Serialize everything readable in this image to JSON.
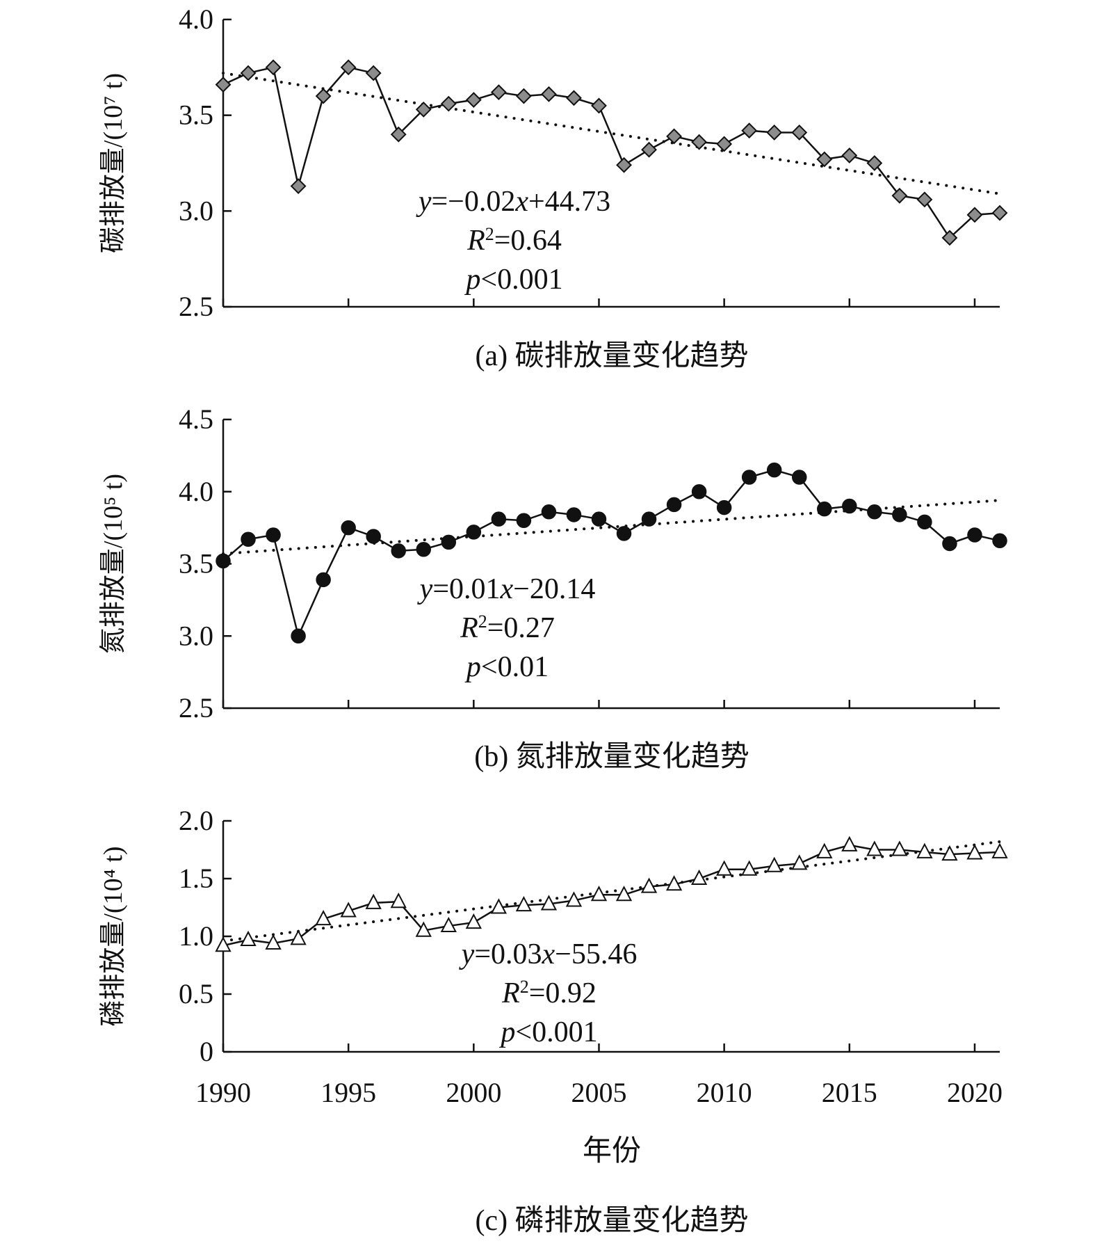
{
  "chart_data": [
    {
      "type": "line",
      "panel": "a",
      "caption": "(a) 碳排放量变化趋势",
      "ylabel": "碳排放量/(10⁷ t)",
      "ylim": [
        2.5,
        4.0
      ],
      "yticks": [
        "4.0",
        "3.5",
        "3.0",
        "2.5"
      ],
      "ytick_values": [
        4.0,
        3.5,
        3.0,
        2.5
      ],
      "marker": "diamond",
      "marker_color": "#8c8c8c",
      "x": [
        1990,
        1991,
        1992,
        1993,
        1994,
        1995,
        1996,
        1997,
        1998,
        1999,
        2000,
        2001,
        2002,
        2003,
        2004,
        2005,
        2006,
        2007,
        2008,
        2009,
        2010,
        2011,
        2012,
        2013,
        2014,
        2015,
        2016,
        2017,
        2018,
        2019,
        2020,
        2021
      ],
      "values": [
        3.66,
        3.72,
        3.75,
        3.13,
        3.6,
        3.75,
        3.72,
        3.4,
        3.53,
        3.56,
        3.58,
        3.62,
        3.6,
        3.61,
        3.59,
        3.55,
        3.24,
        3.32,
        3.39,
        3.36,
        3.35,
        3.42,
        3.41,
        3.41,
        3.27,
        3.29,
        3.25,
        3.08,
        3.06,
        2.86,
        2.98,
        2.99
      ],
      "trend": {
        "slope": -0.02,
        "intercept": 44.73
      },
      "trend_plot": {
        "start": 3.72,
        "end": 3.09
      },
      "equation": {
        "y_var": "y",
        "eq_sign": "=",
        "body": "−0.02",
        "x_var": "x",
        "tail": "+44.73"
      },
      "r2": {
        "var": "R",
        "sup": "2",
        "text": "=0.64"
      },
      "p": {
        "var": "p",
        "text": "<0.001"
      }
    },
    {
      "type": "line",
      "panel": "b",
      "caption": "(b) 氮排放量变化趋势",
      "ylabel": "氮排放量/(10⁵ t)",
      "ylim": [
        2.5,
        4.5
      ],
      "yticks": [
        "4.5",
        "4.0",
        "3.5",
        "3.0",
        "2.5"
      ],
      "ytick_values": [
        4.5,
        4.0,
        3.5,
        3.0,
        2.5
      ],
      "marker": "circle",
      "marker_color": "#111111",
      "x": [
        1990,
        1991,
        1992,
        1993,
        1994,
        1995,
        1996,
        1997,
        1998,
        1999,
        2000,
        2001,
        2002,
        2003,
        2004,
        2005,
        2006,
        2007,
        2008,
        2009,
        2010,
        2011,
        2012,
        2013,
        2014,
        2015,
        2016,
        2017,
        2018,
        2019,
        2020,
        2021
      ],
      "values": [
        3.52,
        3.67,
        3.7,
        3.0,
        3.39,
        3.75,
        3.69,
        3.59,
        3.6,
        3.65,
        3.72,
        3.81,
        3.8,
        3.86,
        3.84,
        3.81,
        3.71,
        3.81,
        3.91,
        4.0,
        3.89,
        4.1,
        4.15,
        4.1,
        3.88,
        3.9,
        3.86,
        3.84,
        3.79,
        3.64,
        3.7,
        3.66
      ],
      "trend": {
        "slope": 0.01,
        "intercept": -20.14
      },
      "trend_plot": {
        "start": 3.57,
        "end": 3.94
      },
      "equation": {
        "y_var": "y",
        "eq_sign": "=",
        "body": "0.01",
        "x_var": "x",
        "tail": "−20.14"
      },
      "r2": {
        "var": "R",
        "sup": "2",
        "text": "=0.27"
      },
      "p": {
        "var": "p",
        "text": "<0.01"
      }
    },
    {
      "type": "line",
      "panel": "c",
      "caption": "(c) 磷排放量变化趋势",
      "ylabel": "磷排放量/(10⁴ t)",
      "ylim": [
        0,
        2.0
      ],
      "yticks": [
        "2.0",
        "1.5",
        "1.0",
        "0.5",
        "0"
      ],
      "ytick_values": [
        2.0,
        1.5,
        1.0,
        0.5,
        0
      ],
      "marker": "triangle",
      "marker_color": "#ffffff",
      "x": [
        1990,
        1991,
        1992,
        1993,
        1994,
        1995,
        1996,
        1997,
        1998,
        1999,
        2000,
        2001,
        2002,
        2003,
        2004,
        2005,
        2006,
        2007,
        2008,
        2009,
        2010,
        2011,
        2012,
        2013,
        2014,
        2015,
        2016,
        2017,
        2018,
        2019,
        2020,
        2021
      ],
      "values": [
        0.92,
        0.97,
        0.94,
        0.98,
        1.15,
        1.22,
        1.29,
        1.3,
        1.05,
        1.09,
        1.12,
        1.25,
        1.27,
        1.28,
        1.31,
        1.36,
        1.36,
        1.43,
        1.45,
        1.5,
        1.58,
        1.58,
        1.61,
        1.63,
        1.73,
        1.79,
        1.75,
        1.75,
        1.73,
        1.71,
        1.72,
        1.73
      ],
      "trend": {
        "slope": 0.03,
        "intercept": -55.46
      },
      "trend_plot": {
        "start": 0.96,
        "end": 1.82
      },
      "equation": {
        "y_var": "y",
        "eq_sign": "=",
        "body": "0.03",
        "x_var": "x",
        "tail": "−55.46"
      },
      "r2": {
        "var": "R",
        "sup": "2",
        "text": "=0.92"
      },
      "p": {
        "var": "p",
        "text": "<0.001"
      }
    }
  ],
  "x_axis": {
    "title": "年份",
    "xlim": [
      1990,
      2021
    ],
    "ticks": [
      "1990",
      "1995",
      "2000",
      "2005",
      "2010",
      "2015",
      "2020"
    ],
    "tick_values": [
      1990,
      1995,
      2000,
      2005,
      2010,
      2015,
      2020
    ]
  }
}
